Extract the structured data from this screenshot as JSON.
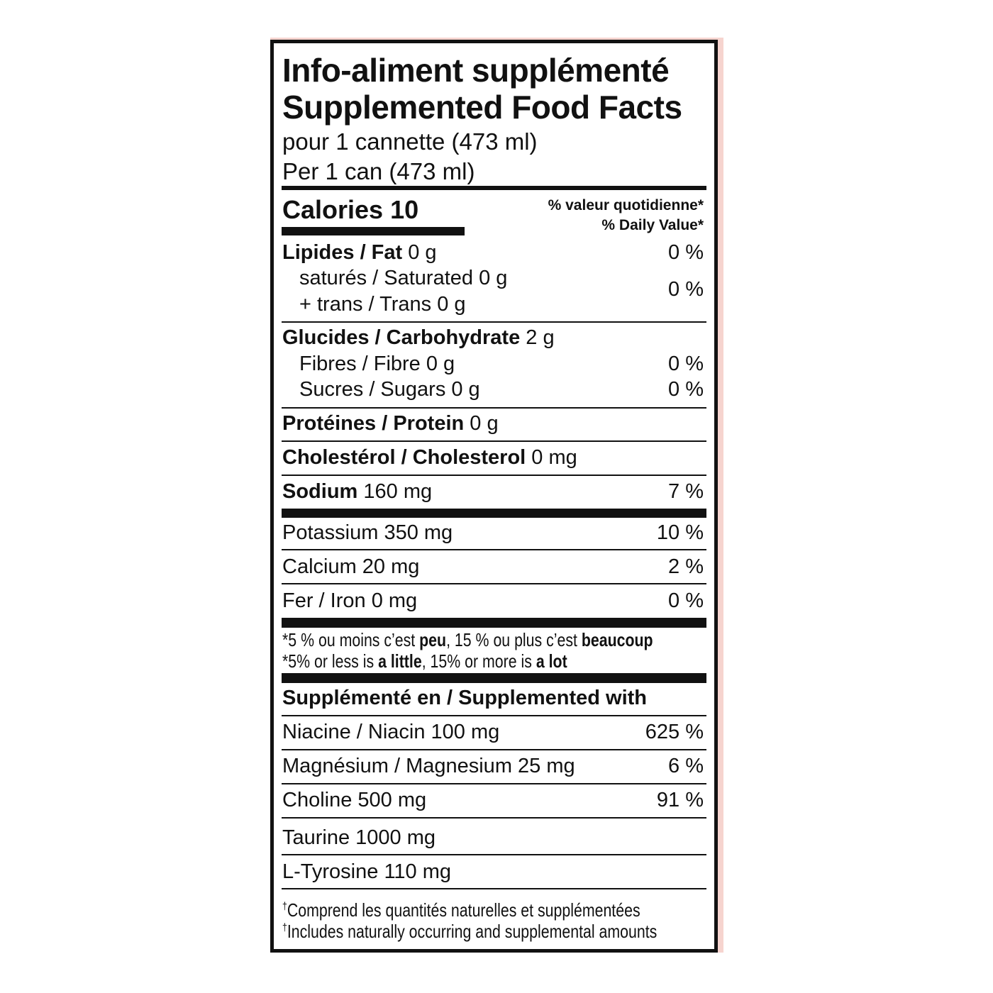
{
  "header": {
    "title_fr": "Info-aliment supplémenté",
    "title_en": "Supplemented Food Facts",
    "serving_fr": "pour 1 cannette (473 ml)",
    "serving_en": "Per 1 can (473 ml)"
  },
  "calories": {
    "label": "Calories 10",
    "dv_fr": "% valeur quotidienne*",
    "dv_en": "% Daily Value*"
  },
  "nutrients": {
    "fat": {
      "label": "Lipides / Fat",
      "amount": " 0 g",
      "dv": "0 %"
    },
    "saturated": {
      "label": "saturés / Saturated 0 g"
    },
    "trans": {
      "label": "+ trans / Trans 0 g"
    },
    "sat_trans_dv": "0 %",
    "carb": {
      "label": "Glucides / Carbohydrate",
      "amount": " 2 g"
    },
    "fibre": {
      "label": "Fibres / Fibre 0 g",
      "dv": "0 %"
    },
    "sugars": {
      "label": "Sucres / Sugars 0 g",
      "dv": "0 %"
    },
    "protein": {
      "label": "Protéines / Protein",
      "amount": " 0 g"
    },
    "cholesterol": {
      "label": "Cholestérol / Cholesterol",
      "amount": " 0 mg"
    },
    "sodium": {
      "label": "Sodium",
      "amount": " 160 mg",
      "dv": "7 %"
    },
    "potassium": {
      "label": "Potassium 350 mg",
      "dv": "10 %"
    },
    "calcium": {
      "label": "Calcium 20 mg",
      "dv": "2 %"
    },
    "iron": {
      "label": "Fer / Iron 0 mg",
      "dv": "0 %"
    }
  },
  "footnote_dv": {
    "fr": [
      "*5 % ou moins c’est ",
      "peu",
      ", 15 % ou plus c’est ",
      "beaucoup"
    ],
    "en": [
      "*5% or less is ",
      "a little",
      ", 15% or more is ",
      "a lot"
    ]
  },
  "supplemented": {
    "heading": "Supplémenté en / Supplemented with",
    "items": [
      {
        "label": "Niacine / Niacin 100 mg",
        "dv": "625 %"
      },
      {
        "label": "Magnésium / Magnesium 25 mg",
        "dv": "6 %"
      },
      {
        "label": "Choline 500 mg",
        "dv": "91 %"
      },
      {
        "label": "Taurine 1000 mg"
      },
      {
        "label": "L-Tyrosine 110 mg"
      }
    ]
  },
  "footnote_supp": {
    "dagger": "†",
    "fr": "Comprend les quantités naturelles et supplémentées",
    "en": "Includes naturally occurring and supplemental amounts"
  }
}
